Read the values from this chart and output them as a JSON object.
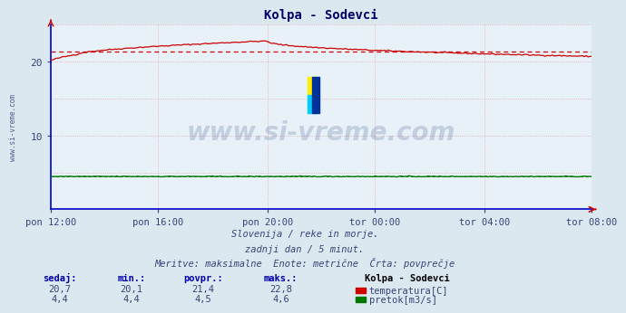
{
  "title": "Kolpa - Sodevci",
  "bg_color": "#dce8f0",
  "plot_bg_color": "#e8f0f8",
  "grid_color": "#e0a8a8",
  "axis_color": "#0000cc",
  "x_labels": [
    "pon 12:00",
    "pon 16:00",
    "pon 20:00",
    "tor 00:00",
    "tor 04:00",
    "tor 08:00"
  ],
  "x_ticks_norm": [
    0.0,
    0.2,
    0.4,
    0.6,
    0.8,
    1.0
  ],
  "total_points": 288,
  "ylim": [
    0,
    25
  ],
  "yticks": [
    10,
    20
  ],
  "temp_avg": 21.4,
  "flow_avg": 4.5,
  "line_color_temp": "#cc0000",
  "line_color_flow": "#007700",
  "avg_line_color": "#cc0000",
  "avg_line_color_flow": "#007700",
  "watermark_text": "www.si-vreme.com",
  "watermark_color": "#1a3a7a",
  "watermark_alpha": 0.18,
  "subtitle1": "Slovenija / reke in morje.",
  "subtitle2": "zadnji dan / 5 minut.",
  "subtitle3": "Meritve: maksimalne  Enote: metrične  Črta: povprečje",
  "legend_title": "Kolpa - Sodevci",
  "legend_temp": "temperatura[C]",
  "legend_flow": "pretok[m3/s]",
  "stats_headers": [
    "sedaj:",
    "min.:",
    "povpr.:",
    "maks.:"
  ],
  "stats_temp": [
    "20,7",
    "20,1",
    "21,4",
    "22,8"
  ],
  "stats_flow": [
    "4,4",
    "4,4",
    "4,5",
    "4,6"
  ],
  "left_label": "www.si-vreme.com",
  "text_color": "#334477",
  "header_color": "#0000aa",
  "title_color": "#000066"
}
